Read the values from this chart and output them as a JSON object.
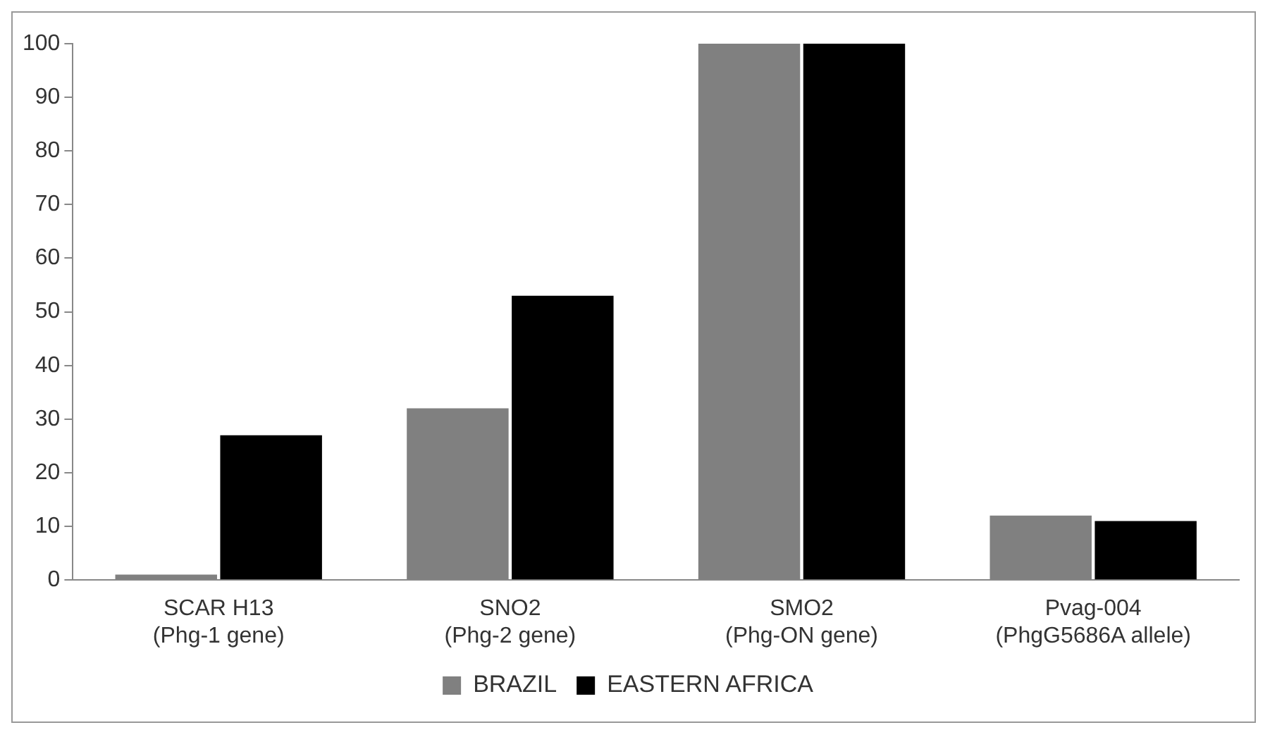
{
  "chart_data": {
    "type": "bar",
    "categories": [
      "SCAR H13\n(Phg-1 gene)",
      "SNO2\n(Phg-2 gene)",
      "SMO2\n(Phg-ON gene)",
      "Pvag-004\n(PhgG5686A allele)"
    ],
    "series": [
      {
        "name": "BRAZIL",
        "color": "#808080",
        "values": [
          1,
          32,
          100,
          12
        ]
      },
      {
        "name": "EASTERN AFRICA",
        "color": "#000000",
        "values": [
          27,
          53,
          100,
          11
        ]
      }
    ],
    "ylim": [
      0,
      100
    ],
    "yticks": [
      0,
      10,
      20,
      30,
      40,
      50,
      60,
      70,
      80,
      90,
      100
    ],
    "grid": false,
    "legend": "bottom"
  }
}
